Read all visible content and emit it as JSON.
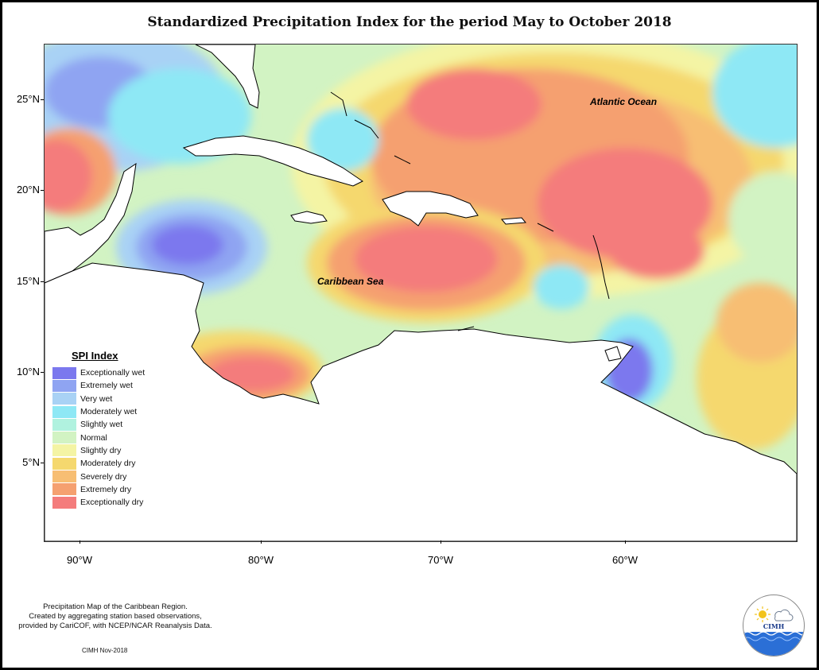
{
  "title": "Standardized Precipitation Index for the period May to October 2018",
  "ocean_labels": {
    "atlantic": "Atlantic Ocean",
    "caribbean": "Caribbean Sea"
  },
  "axes": {
    "latitude_labels": [
      "25°N",
      "20°N",
      "15°N",
      "10°N",
      "5°N"
    ],
    "longitude_labels": [
      "90°W",
      "80°W",
      "70°W",
      "60°W"
    ]
  },
  "legend": {
    "title": "SPI Index",
    "items": [
      {
        "label": "Exceptionally wet",
        "color": "#7b78ee"
      },
      {
        "label": "Extremely wet",
        "color": "#8fa4f2"
      },
      {
        "label": "Very wet",
        "color": "#a9d2f5"
      },
      {
        "label": "Moderately wet",
        "color": "#8ee8f5"
      },
      {
        "label": "Slightly wet",
        "color": "#b0f2df"
      },
      {
        "label": "Normal",
        "color": "#d2f3c3"
      },
      {
        "label": "Slightly dry",
        "color": "#f4f4a4"
      },
      {
        "label": "Moderately dry",
        "color": "#f5d86e"
      },
      {
        "label": "Severely dry",
        "color": "#f7be73"
      },
      {
        "label": "Extremely dry",
        "color": "#f5a070"
      },
      {
        "label": "Exceptionally dry",
        "color": "#f47c7c"
      }
    ]
  },
  "footnote": {
    "lines": [
      "Precipitation Map of the Caribbean Region.",
      "Created by aggregating station based observations,",
      "provided by CariCOF, with NCEP/NCAR Reanalysis Data."
    ],
    "date": "CIMH Nov-2018"
  },
  "logo": {
    "text": "CIMH",
    "icons": [
      "sun-icon",
      "cloud-icon",
      "wave-icon"
    ]
  }
}
